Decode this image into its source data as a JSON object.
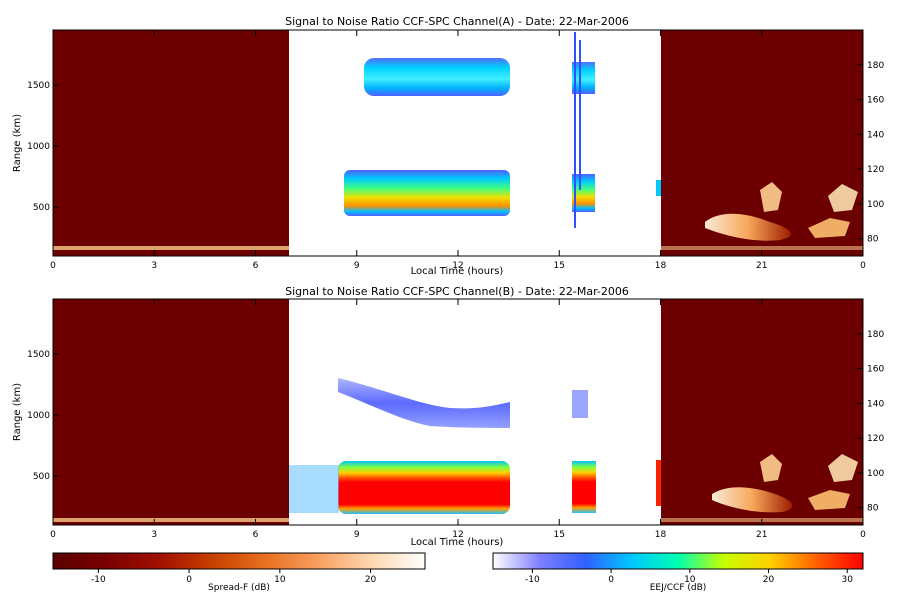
{
  "chart_data": [
    {
      "type": "heatmap",
      "title": "Signal to Noise Ratio CCF-SPC Channel(A) - Date: 22-Mar-2006",
      "xlabel": "Local Time (hours)",
      "ylabel": "Range (km)",
      "x_ticks": [
        "0",
        "3",
        "6",
        "9",
        "12",
        "15",
        "18",
        "21",
        "0"
      ],
      "y_ticks_left": [
        "500",
        "1000",
        "1500"
      ],
      "y_ticks_right": [
        "80",
        "100",
        "120",
        "140",
        "160",
        "180"
      ],
      "xlim": [
        0,
        24
      ],
      "ylim_left": [
        100,
        1950
      ],
      "ylim_right": [
        70,
        200
      ],
      "regions": [
        {
          "label": "Spread-F",
          "x_range": [
            0,
            7
          ],
          "colormap": "spread-f"
        },
        {
          "label": "EEJ/CCF",
          "x_range": [
            7,
            18
          ],
          "colormap": "eej-ccf"
        },
        {
          "label": "Spread-F",
          "x_range": [
            18,
            24
          ],
          "colormap": "spread-f"
        }
      ],
      "echo_features": [
        {
          "name": "upper layer",
          "x_range": [
            9.2,
            13.5
          ],
          "range_km": [
            1400,
            1720
          ],
          "snr_db": [
            -8,
            8
          ]
        },
        {
          "name": "lower layer",
          "x_range": [
            8.6,
            13.5
          ],
          "range_km": [
            430,
            780
          ],
          "snr_db": [
            -8,
            25
          ]
        },
        {
          "name": "lower layer",
          "x_range": [
            15.4,
            16.1
          ],
          "range_km": [
            430,
            760
          ],
          "snr_db": [
            -8,
            25
          ]
        },
        {
          "name": "upper layer",
          "x_range": [
            15.4,
            16.1
          ],
          "range_km": [
            1400,
            1700
          ],
          "snr_db": [
            -8,
            8
          ]
        }
      ]
    },
    {
      "type": "heatmap",
      "title": "Signal to Noise Ratio CCF-SPC Channel(B) - Date: 22-Mar-2006",
      "xlabel": "Local Time (hours)",
      "ylabel": "Range (km)",
      "x_ticks": [
        "0",
        "3",
        "6",
        "9",
        "12",
        "15",
        "18",
        "21",
        "0"
      ],
      "y_ticks_left": [
        "500",
        "1000",
        "1500"
      ],
      "y_ticks_right": [
        "80",
        "100",
        "120",
        "140",
        "160",
        "180"
      ],
      "xlim": [
        0,
        24
      ],
      "ylim_left": [
        100,
        1950
      ],
      "ylim_right": [
        70,
        200
      ],
      "regions": [
        {
          "label": "Spread-F",
          "x_range": [
            0,
            7
          ],
          "colormap": "spread-f"
        },
        {
          "label": "EEJ/CCF",
          "x_range": [
            7,
            18
          ],
          "colormap": "eej-ccf"
        },
        {
          "label": "Spread-F",
          "x_range": [
            18,
            24
          ],
          "colormap": "spread-f"
        }
      ],
      "echo_features": [
        {
          "name": "upper layer",
          "x_range": [
            9.5,
            13.5
          ],
          "range_km": [
            900,
            1400
          ],
          "snr_db": [
            -10,
            0
          ]
        },
        {
          "name": "lower layer",
          "x_range": [
            8.6,
            13.5
          ],
          "range_km": [
            180,
            600
          ],
          "snr_db": [
            0,
            32
          ]
        },
        {
          "name": "lower layer",
          "x_range": [
            15.4,
            16.1
          ],
          "range_km": [
            180,
            600
          ],
          "snr_db": [
            0,
            32
          ]
        }
      ]
    }
  ],
  "colorbars": [
    {
      "label": "Spread-F (dB)",
      "ticks": [
        "-10",
        "0",
        "10",
        "20"
      ],
      "range": [
        -15,
        26
      ],
      "colors": [
        "#5a0000",
        "#7a0000",
        "#a01000",
        "#c84000",
        "#e87020",
        "#f8a060",
        "#fcd8b0",
        "#ffffff"
      ]
    },
    {
      "label": "EEJ/CCF (dB)",
      "ticks": [
        "-10",
        "0",
        "10",
        "20",
        "30"
      ],
      "range": [
        -15,
        32
      ],
      "colors": [
        "#ffffff",
        "#8080ff",
        "#3060ff",
        "#00c8ff",
        "#00ffb0",
        "#c8ff00",
        "#ffd000",
        "#ff6000",
        "#ff0000"
      ]
    }
  ]
}
